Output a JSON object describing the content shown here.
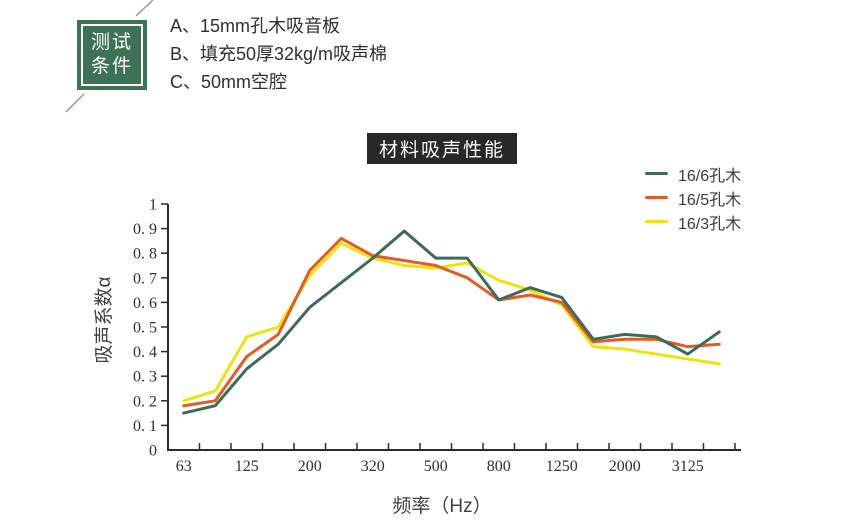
{
  "badge": {
    "line1": "测试",
    "line2": "条件",
    "bg_color": "#3e7257"
  },
  "conditions": [
    "A、15mm孔木吸音板",
    "B、填充50厚32kg/m吸声棉",
    "C、50mm空腔"
  ],
  "title_box": {
    "bg_color": "#282828"
  },
  "chart_data": {
    "type": "line",
    "title": "材料吸声性能",
    "xlabel": "频率（Hz）",
    "ylabel": "吸声系数α",
    "x_tick_labels": [
      "63",
      "125",
      "200",
      "320",
      "500",
      "800",
      "1250",
      "2000",
      "3125"
    ],
    "x_minor_ticks_per_label": 2,
    "y_tick_labels": [
      "0",
      "0. 1",
      "0. 2",
      "0. 3",
      "0. 4",
      "0. 5",
      "0. 6",
      "0. 7",
      "0. 8",
      "0. 9",
      "1"
    ],
    "ylim": [
      0,
      1
    ],
    "grid": false,
    "legend_position": "top-right",
    "series": [
      {
        "name": "16/6孔木",
        "color": "#3e6b58",
        "values": [
          0.15,
          0.18,
          0.33,
          0.43,
          0.58,
          0.68,
          0.78,
          0.89,
          0.78,
          0.78,
          0.61,
          0.66,
          0.62,
          0.45,
          0.47,
          0.46,
          0.39,
          0.48
        ]
      },
      {
        "name": "16/5孔木",
        "color": "#e35b22",
        "values": [
          0.18,
          0.2,
          0.38,
          0.47,
          0.73,
          0.86,
          0.79,
          0.77,
          0.75,
          0.7,
          0.61,
          0.63,
          0.6,
          0.44,
          0.45,
          0.45,
          0.42,
          0.43
        ]
      },
      {
        "name": "16/3孔木",
        "color": "#efe20e",
        "values": [
          0.2,
          0.24,
          0.46,
          0.5,
          0.71,
          0.84,
          0.78,
          0.75,
          0.74,
          0.76,
          0.69,
          0.65,
          0.59,
          0.42,
          0.41,
          0.39,
          0.37,
          0.35
        ]
      }
    ]
  }
}
